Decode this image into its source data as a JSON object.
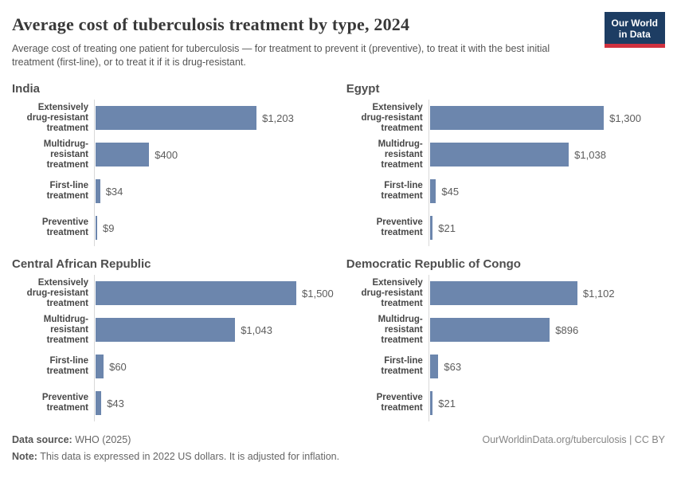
{
  "header": {
    "title": "Average cost of tuberculosis treatment by type, 2024",
    "subtitle": "Average cost of treating one patient for tuberculosis — for treatment to prevent it (preventive), to treat it with the best initial treatment (first-line), or to treat it if it is drug-resistant.",
    "logo": {
      "line1": "Our World",
      "line2": "in Data"
    }
  },
  "colors": {
    "bar": "#6c86ad",
    "logo_navy": "#1d3d63",
    "logo_red": "#d0313f",
    "axis_line": "#d9d9d9"
  },
  "chart_data": {
    "type": "bar",
    "orientation": "horizontal",
    "title": "Average cost of tuberculosis treatment by type, 2024",
    "unit": "US$",
    "xlim": [
      0,
      1500
    ],
    "shared_xmax": 1500,
    "grid": false,
    "value_labels_shown": true,
    "categories": [
      "Extensively drug-resistant treatment",
      "Multidrug-resistant treatment",
      "First-line treatment",
      "Preventive treatment"
    ],
    "categories_display": [
      "Extensively\ndrug-resistant\ntreatment",
      "Multidrug-resistant\ntreatment",
      "First-line treatment",
      "Preventive\ntreatment"
    ],
    "panels": [
      {
        "title": "India",
        "values": [
          1203,
          400,
          34,
          9
        ],
        "value_labels": [
          "$1,203",
          "$400",
          "$34",
          "$9"
        ]
      },
      {
        "title": "Egypt",
        "values": [
          1300,
          1038,
          45,
          21
        ],
        "value_labels": [
          "$1,300",
          "$1,038",
          "$45",
          "$21"
        ]
      },
      {
        "title": "Central African Republic",
        "values": [
          1500,
          1043,
          60,
          43
        ],
        "value_labels": [
          "$1,500",
          "$1,043",
          "$60",
          "$43"
        ]
      },
      {
        "title": "Democratic Republic of Congo",
        "values": [
          1102,
          896,
          63,
          21
        ],
        "value_labels": [
          "$1,102",
          "$896",
          "$63",
          "$21"
        ]
      }
    ]
  },
  "footer": {
    "source_label": "Data source:",
    "source_text": " WHO (2025)",
    "note_label": "Note:",
    "note_text": " This data is expressed in 2022 US dollars. It is adjusted for inflation.",
    "credit": "OurWorldinData.org/tuberculosis | CC BY"
  }
}
